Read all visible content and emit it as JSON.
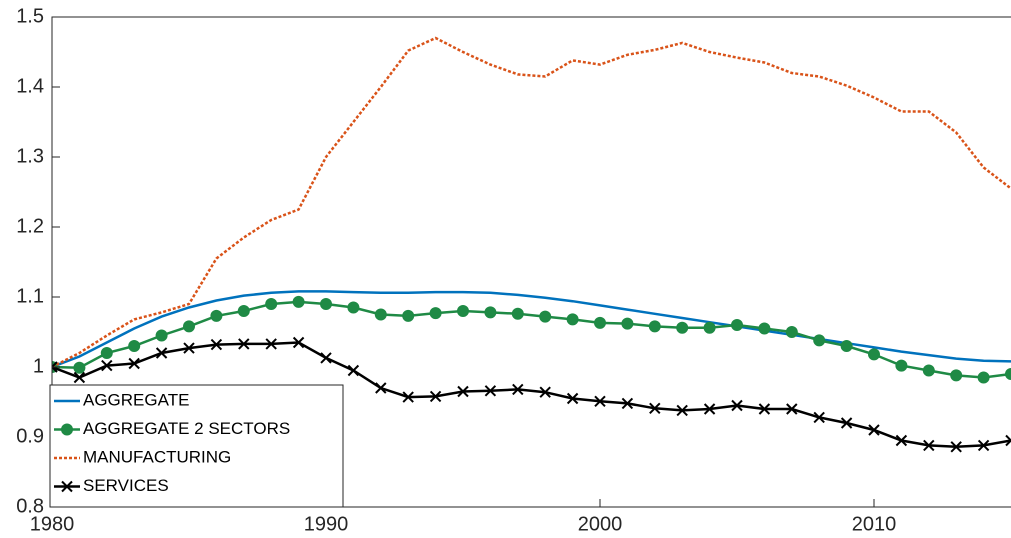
{
  "chart_data": {
    "type": "line",
    "x": [
      1980,
      1981,
      1982,
      1983,
      1984,
      1985,
      1986,
      1987,
      1988,
      1989,
      1990,
      1991,
      1992,
      1993,
      1994,
      1995,
      1996,
      1997,
      1998,
      1999,
      2000,
      2001,
      2002,
      2003,
      2004,
      2005,
      2006,
      2007,
      2008,
      2009,
      2010,
      2011,
      2012,
      2013,
      2014,
      2015
    ],
    "xlim": [
      1980,
      2015
    ],
    "xticks": [
      1980,
      1990,
      2000,
      2010
    ],
    "ylim": [
      0.8,
      1.5
    ],
    "yticks": [
      0.8,
      0.9,
      1,
      1.1,
      1.2,
      1.3,
      1.4,
      1.5
    ],
    "legend": "lower left",
    "series": [
      {
        "name": "AGGREGATE",
        "color": "#0072bd",
        "style": "solid",
        "marker": "none",
        "values": [
          1.0,
          1.015,
          1.035,
          1.055,
          1.072,
          1.085,
          1.095,
          1.102,
          1.106,
          1.108,
          1.108,
          1.107,
          1.106,
          1.106,
          1.107,
          1.107,
          1.106,
          1.103,
          1.099,
          1.094,
          1.088,
          1.082,
          1.076,
          1.07,
          1.064,
          1.058,
          1.052,
          1.046,
          1.04,
          1.034,
          1.028,
          1.022,
          1.017,
          1.012,
          1.009,
          1.008
        ]
      },
      {
        "name": "AGGREGATE 2 SECTORS",
        "color": "#1f8a45",
        "style": "solid",
        "marker": "circle",
        "values": [
          1.0,
          0.999,
          1.02,
          1.03,
          1.045,
          1.058,
          1.073,
          1.08,
          1.09,
          1.093,
          1.09,
          1.085,
          1.075,
          1.073,
          1.077,
          1.08,
          1.078,
          1.076,
          1.072,
          1.068,
          1.063,
          1.062,
          1.058,
          1.056,
          1.056,
          1.06,
          1.055,
          1.05,
          1.038,
          1.03,
          1.018,
          1.002,
          0.995,
          0.988,
          0.985,
          0.99
        ]
      },
      {
        "name": "MANUFACTURING",
        "color": "#d95319",
        "style": "dotted",
        "marker": "none",
        "values": [
          1.0,
          1.02,
          1.045,
          1.068,
          1.078,
          1.09,
          1.155,
          1.185,
          1.21,
          1.225,
          1.3,
          1.35,
          1.4,
          1.452,
          1.47,
          1.45,
          1.432,
          1.418,
          1.415,
          1.438,
          1.432,
          1.446,
          1.453,
          1.463,
          1.45,
          1.442,
          1.435,
          1.42,
          1.415,
          1.402,
          1.385,
          1.365,
          1.365,
          1.335,
          1.285,
          1.255
        ]
      },
      {
        "name": "SERVICES",
        "color": "#000000",
        "style": "solid",
        "marker": "x",
        "values": [
          1.0,
          0.985,
          1.002,
          1.005,
          1.02,
          1.027,
          1.032,
          1.033,
          1.033,
          1.035,
          1.013,
          0.995,
          0.97,
          0.957,
          0.958,
          0.965,
          0.966,
          0.968,
          0.964,
          0.955,
          0.951,
          0.948,
          0.941,
          0.938,
          0.94,
          0.945,
          0.94,
          0.94,
          0.928,
          0.92,
          0.91,
          0.895,
          0.888,
          0.886,
          0.888,
          0.895
        ]
      }
    ]
  }
}
